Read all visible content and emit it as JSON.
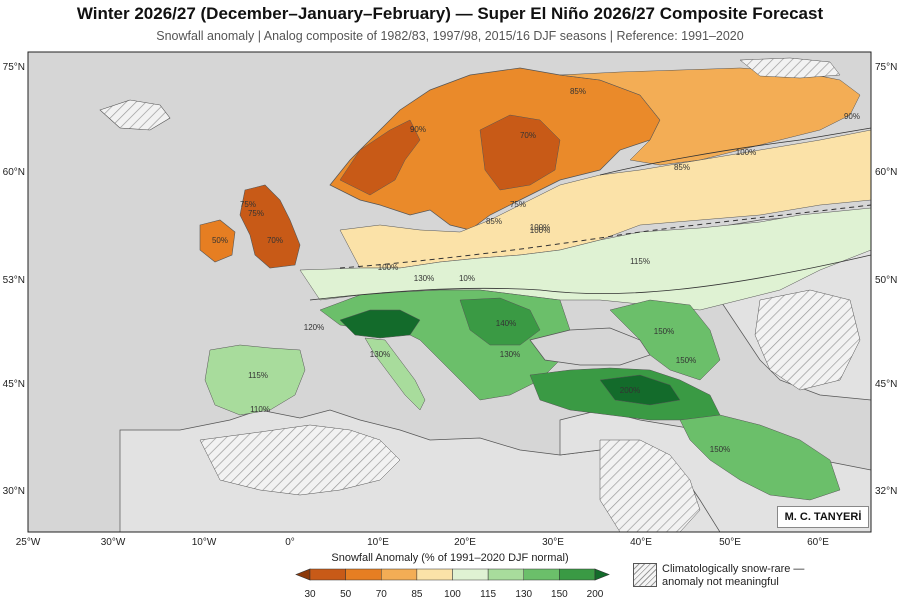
{
  "header": {
    "title": "Winter 2026/27 (December–January–February) — Super El Niño 2026/27 Composite Forecast",
    "subtitle": "Snowfall anomaly | Analog composite of 1982/83, 1997/98, 2015/16 DJF seasons | Reference: 1991–2020"
  },
  "axes": {
    "lon_labels": [
      "25°W",
      "30°W",
      "10°W",
      "0°",
      "10°E",
      "20°E",
      "30°E",
      "40°E",
      "50°E",
      "60°E"
    ],
    "lat_labels_left": [
      "75°N",
      "60°N",
      "53°N",
      "45°N",
      "30°N"
    ],
    "lat_labels_right": [
      "75°N",
      "60°N",
      "50°N",
      "45°N",
      "32°N"
    ]
  },
  "contour_labels": [
    "85%",
    "90%",
    "70%",
    "75%",
    "75%",
    "85%",
    "100%",
    "100%",
    "90%",
    "100%",
    "85%",
    "50%",
    "70%",
    "75%",
    "100%",
    "130%",
    "10%",
    "115%",
    "120%",
    "140%",
    "130%",
    "130%",
    "150%",
    "150%",
    "200%",
    "150%",
    "115%",
    "110%"
  ],
  "colorbar": {
    "title": "Snowfall Anomaly (% of 1991–2020 DJF normal)",
    "ticks": [
      "30",
      "50",
      "70",
      "85",
      "100",
      "115",
      "130",
      "150",
      "200"
    ],
    "colors": [
      "#8c3a0c",
      "#c85a17",
      "#e67e22",
      "#f3ad55",
      "#fbe2a8",
      "#dff2d3",
      "#a8dc9c",
      "#6bbf6a",
      "#3a9a44",
      "#136b2b"
    ]
  },
  "legend": {
    "hatch_note": "Climatologically snow-rare — anomaly not meaningful"
  },
  "credit": "M. C. TANYERİ",
  "colors": {
    "sea": "#d6d6d6",
    "land": "#e4e4e4",
    "border": "#ffffff"
  }
}
